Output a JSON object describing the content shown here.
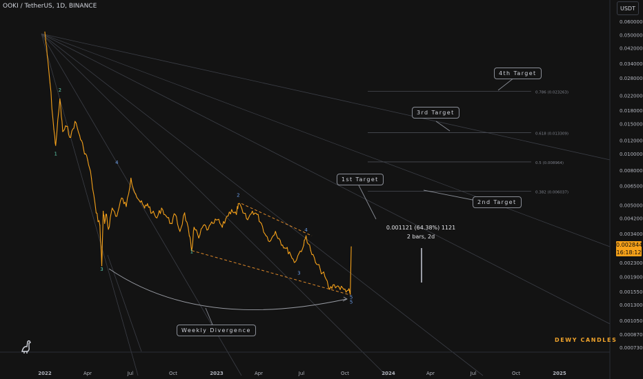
{
  "header": {
    "title": "OOKI / TetherUS, 1D, BINANCE",
    "currency": "USDT"
  },
  "price_tag": {
    "price": "0.002844",
    "countdown": "16:18:12"
  },
  "measure": {
    "line1": "0.001121 (64.38%) 1121",
    "line2": "2 bars, 2d"
  },
  "brand": "DEWY CANDLES",
  "callouts": {
    "t4": "4th Target",
    "t3": "3rd Target",
    "t1": "1st Target",
    "t2": "2nd Target",
    "div": "Weekly Divergence"
  },
  "colors": {
    "price_line": "#f7a21a",
    "wave_blue": "#6b9de8",
    "wave_green": "#5fd0b0",
    "dashed": "#e08a2a",
    "fib": "#4a4d55"
  },
  "chart_data": {
    "type": "line",
    "title": "",
    "xlabel": "",
    "ylabel": "",
    "y_scale": "log",
    "ylim": [
      0.00067,
      0.062
    ],
    "x_ticks": [
      "2022",
      "Apr",
      "Jul",
      "Oct",
      "2023",
      "Apr",
      "Jul",
      "Oct",
      "2024",
      "Apr",
      "Jul",
      "Oct",
      "2025"
    ],
    "y_ticks": [
      "0.060000",
      "0.050000",
      "0.042000",
      "0.034000",
      "0.028000",
      "0.022000",
      "0.018000",
      "0.015000",
      "0.012000",
      "0.010000",
      "0.008000",
      "0.006500",
      "0.005000",
      "0.004200",
      "0.003400",
      "0.002300",
      "0.001900",
      "0.001550",
      "0.001300",
      "0.001050",
      "0.000870",
      "0.000730"
    ],
    "series": [
      {
        "x": [
          "2022-01-01",
          "2022-01-06",
          "2022-01-12",
          "2022-01-20",
          "2022-01-24",
          "2022-02-02",
          "2022-02-08",
          "2022-02-16",
          "2022-02-25",
          "2022-03-06",
          "2022-03-16",
          "2022-03-24",
          "2022-04-02",
          "2022-04-10",
          "2022-04-20",
          "2022-04-28",
          "2022-05-02",
          "2022-05-05",
          "2022-05-08",
          "2022-05-12",
          "2022-05-16",
          "2022-05-24",
          "2022-06-03",
          "2022-06-13",
          "2022-06-23",
          "2022-07-03",
          "2022-07-13",
          "2022-07-23",
          "2022-08-01",
          "2022-08-07",
          "2022-08-17",
          "2022-08-27",
          "2022-09-06",
          "2022-09-16",
          "2022-09-26",
          "2022-10-05",
          "2022-10-15",
          "2022-10-25",
          "2022-11-04",
          "2022-11-09",
          "2022-11-14",
          "2022-11-24",
          "2022-12-04",
          "2022-12-14",
          "2022-12-24",
          "2023-01-03",
          "2023-01-13",
          "2023-01-23",
          "2023-02-02",
          "2023-02-12",
          "2023-02-16",
          "2023-02-26",
          "2023-03-08",
          "2023-03-18",
          "2023-03-28",
          "2023-04-06",
          "2023-04-16",
          "2023-04-26",
          "2023-05-06",
          "2023-05-16",
          "2023-05-26",
          "2023-06-05",
          "2023-06-15",
          "2023-06-25",
          "2023-07-05",
          "2023-07-10",
          "2023-07-20",
          "2023-07-30",
          "2023-08-09",
          "2023-08-19",
          "2023-08-29",
          "2023-09-08",
          "2023-09-18",
          "2023-09-28",
          "2023-10-08",
          "2023-10-12",
          "2023-10-14"
        ],
        "values": [
          0.052,
          0.038,
          0.026,
          0.014,
          0.0112,
          0.021,
          0.0135,
          0.0145,
          0.0125,
          0.0155,
          0.0128,
          0.0108,
          0.0092,
          0.0072,
          0.0045,
          0.0038,
          0.0022,
          0.0046,
          0.0039,
          0.0044,
          0.0036,
          0.0048,
          0.0043,
          0.0055,
          0.0049,
          0.0072,
          0.0058,
          0.0052,
          0.0048,
          0.0051,
          0.0045,
          0.0042,
          0.0048,
          0.0043,
          0.0039,
          0.0044,
          0.0035,
          0.0045,
          0.0033,
          0.0027,
          0.0037,
          0.0032,
          0.0038,
          0.0036,
          0.0039,
          0.0041,
          0.0037,
          0.0043,
          0.0047,
          0.0044,
          0.0051,
          0.0045,
          0.0041,
          0.0046,
          0.0044,
          0.0039,
          0.0033,
          0.0031,
          0.0035,
          0.0031,
          0.0028,
          0.00265,
          0.0023,
          0.0026,
          0.0029,
          0.0033,
          0.0027,
          0.0023,
          0.0021,
          0.0019,
          0.0016,
          0.0017,
          0.00165,
          0.0016,
          0.00158,
          0.0015,
          0.002844
        ]
      }
    ],
    "wave_labels": [
      {
        "x": "2022-01-24",
        "y": 0.0098,
        "text": "1",
        "kind": "green"
      },
      {
        "x": "2022-02-02",
        "y": 0.0232,
        "text": "2",
        "kind": "green"
      },
      {
        "x": "2022-05-02",
        "y": 0.00205,
        "text": "3",
        "kind": "green"
      },
      {
        "x": "2022-06-03",
        "y": 0.0087,
        "text": "4",
        "kind": "blue"
      },
      {
        "x": "2022-11-09",
        "y": 0.0026,
        "text": "1",
        "kind": "green"
      },
      {
        "x": "2023-02-16",
        "y": 0.0056,
        "text": "2",
        "kind": "blue"
      },
      {
        "x": "2023-07-10",
        "y": 0.0035,
        "text": "4",
        "kind": "blue"
      },
      {
        "x": "2023-06-25",
        "y": 0.00195,
        "text": "3",
        "kind": "blue"
      },
      {
        "x": "2023-10-14",
        "y": 0.00141,
        "text": "5",
        "kind": "blue"
      },
      {
        "x": "2023-10-14",
        "y": 0.00132,
        "text": "5",
        "kind": "blue"
      }
    ],
    "fib_levels": [
      {
        "label": "0.786 (0.023263)",
        "value": 0.023263
      },
      {
        "label": "0.618 (0.013309)",
        "value": 0.013309
      },
      {
        "label": "0.5 (0.008964)",
        "value": 0.008964
      },
      {
        "label": "0.382 (0.006037)",
        "value": 0.006037
      }
    ]
  }
}
